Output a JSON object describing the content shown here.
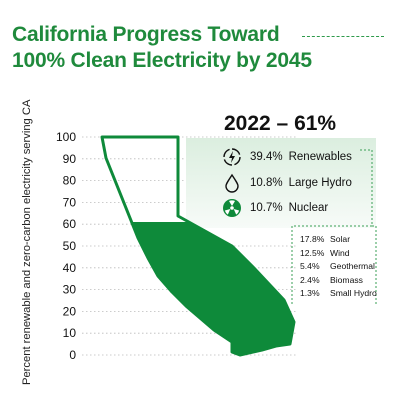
{
  "title_line1": "California Progress Toward",
  "title_line2": "100% Clean Electricity by 2045",
  "chart_data": {
    "type": "area",
    "ylabel": "Percent renewable and zero-carbon electricity serving CA",
    "yticks": [
      100,
      90,
      80,
      70,
      60,
      50,
      40,
      30,
      20,
      10,
      0
    ],
    "ylim": [
      0,
      100
    ],
    "grid": "dotted",
    "fill_value": 61,
    "headline": "2022 – 61%",
    "components": [
      {
        "pct": "39.4%",
        "label": "Renewables",
        "icon": "lightning-icon"
      },
      {
        "pct": "10.8%",
        "label": "Large Hydro",
        "icon": "water-drop-icon"
      },
      {
        "pct": "10.7%",
        "label": "Nuclear",
        "icon": "radiation-icon"
      }
    ],
    "renewables_breakdown": [
      {
        "pct": "17.8%",
        "label": "Solar"
      },
      {
        "pct": "12.5%",
        "label": "Wind"
      },
      {
        "pct": "5.4%",
        "label": "Geothermal"
      },
      {
        "pct": "2.4%",
        "label": "Biomass"
      },
      {
        "pct": "1.3%",
        "label": "Small Hydro"
      }
    ]
  },
  "colors": {
    "green": "#0e8a3a",
    "title_green": "#1f8a3c",
    "panel": "#e6f1e8",
    "grid": "#bbbbbb"
  }
}
